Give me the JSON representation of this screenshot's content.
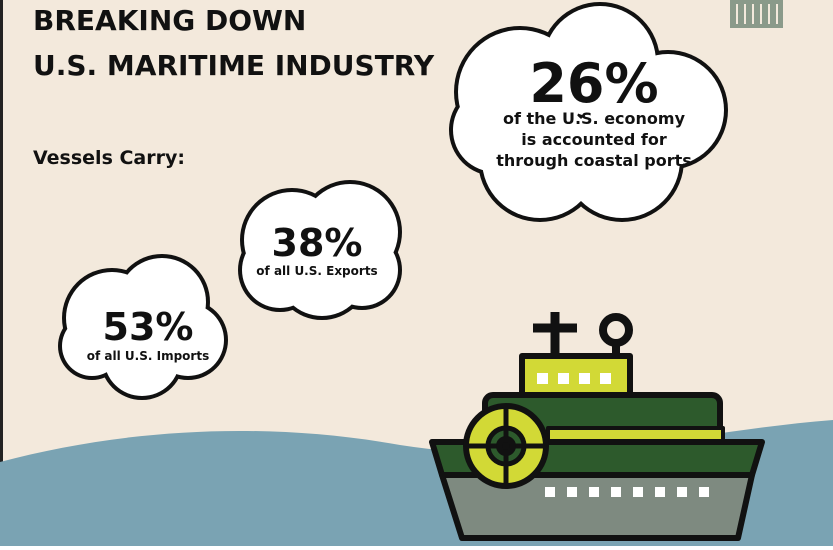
{
  "header": {
    "title_lines": [
      "BREAKING DOWN",
      "U.S. MARITIME INDUSTRY"
    ]
  },
  "intro": "Vessels Carry:",
  "callouts": [
    {
      "value": "26%",
      "text_lines": [
        "of the U.S. economy",
        "is accounted for",
        "through coastal ports"
      ]
    },
    {
      "value": "38%",
      "text_lines": [
        "of all U.S. Exports"
      ]
    },
    {
      "value": "53%",
      "text_lines": [
        "of all U.S. Imports"
      ]
    }
  ]
}
